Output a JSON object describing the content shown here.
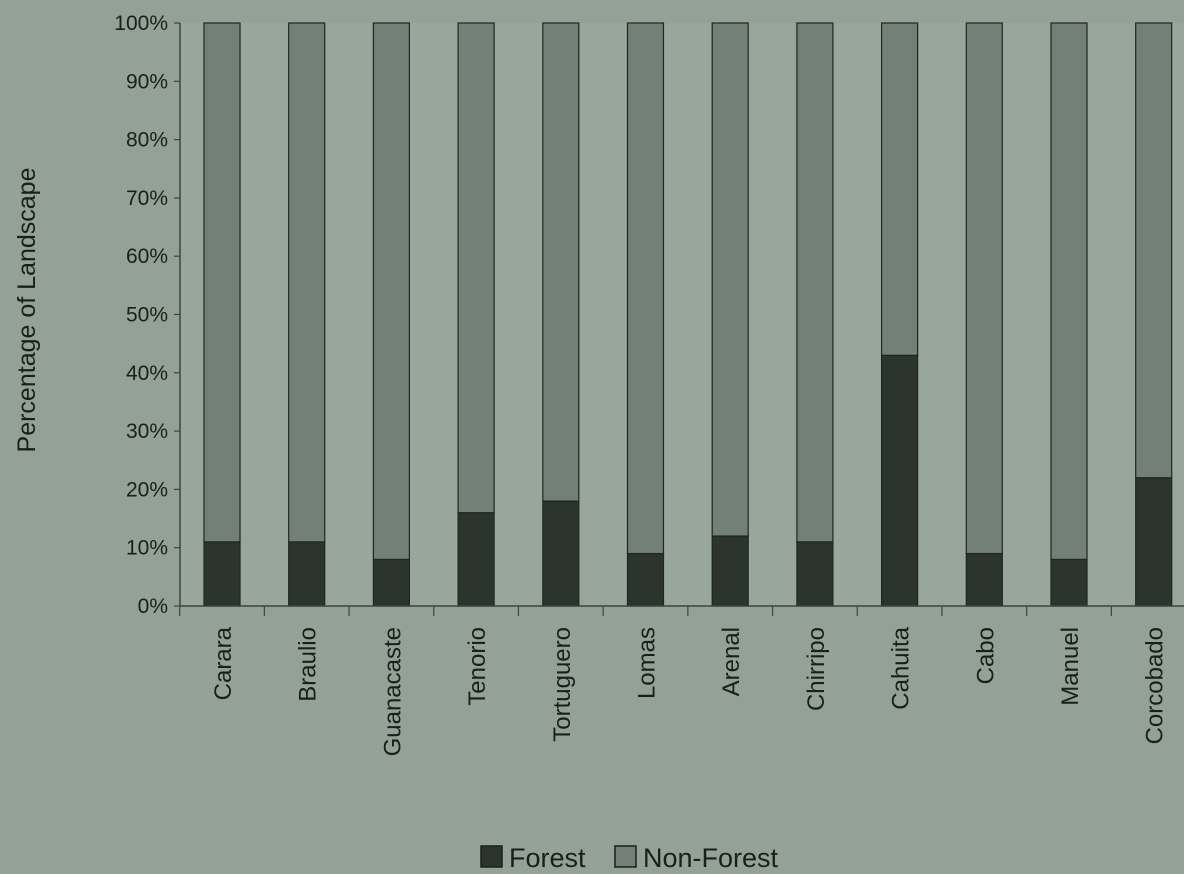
{
  "chart_data": {
    "type": "bar",
    "stacked": true,
    "title": "",
    "xlabel": "",
    "ylabel": "Percentage of Landscape",
    "ylim": [
      0,
      100
    ],
    "y_ticks": [
      "0%",
      "10%",
      "20%",
      "30%",
      "40%",
      "50%",
      "60%",
      "70%",
      "80%",
      "90%",
      "100%"
    ],
    "categories": [
      "Carara",
      "Braulio",
      "Guanacaste",
      "Tenorio",
      "Tortuguero",
      "Lomas",
      "Arenal",
      "Chirripo",
      "Cahuita",
      "Cabo",
      "Manuel",
      "Corcobado"
    ],
    "series": [
      {
        "name": "Forest",
        "color": "#2b352d",
        "values": [
          11,
          11,
          8,
          16,
          18,
          9,
          12,
          11,
          43,
          9,
          8,
          22
        ]
      },
      {
        "name": "Non-Forest",
        "color": "#738078",
        "values": [
          89,
          89,
          92,
          84,
          82,
          91,
          88,
          89,
          57,
          91,
          92,
          78
        ]
      }
    ],
    "grid": false,
    "legend": "bottom",
    "colors": {
      "background": "#93a196",
      "plot_area": "#98a69b",
      "axis": "#3c453e"
    }
  }
}
